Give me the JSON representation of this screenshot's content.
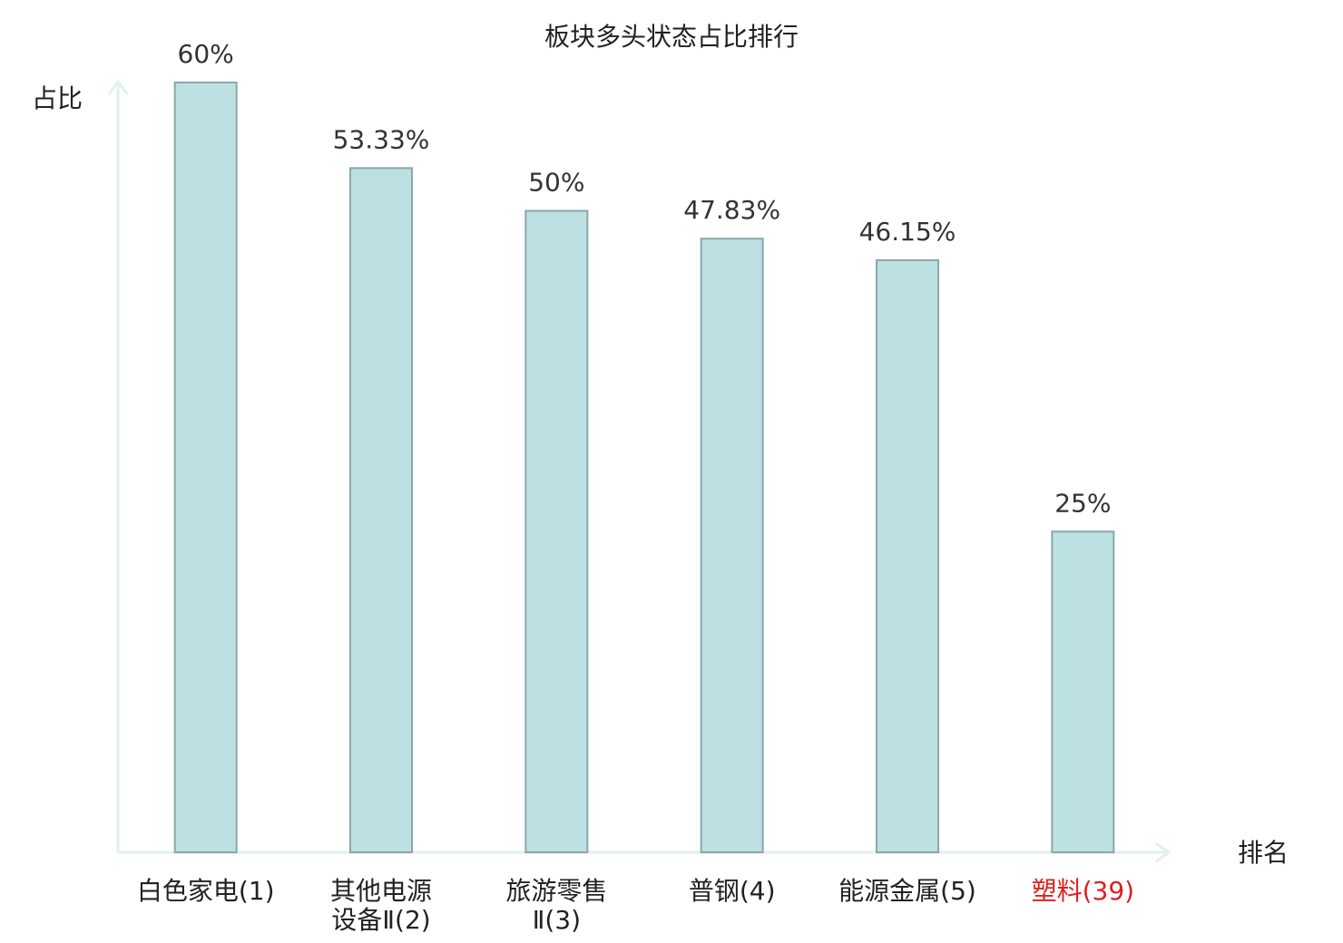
{
  "chart_data": {
    "type": "bar",
    "title": "板块多头状态占比排行",
    "y_label": "占比",
    "x_label": "排名",
    "categories": [
      [
        "白色家电(1)"
      ],
      [
        "其他电源",
        "设备Ⅱ(2)"
      ],
      [
        "旅游零售",
        "Ⅱ(3)"
      ],
      [
        "普钢(4)"
      ],
      [
        "能源金属(5)"
      ],
      [
        "塑料(39)"
      ]
    ],
    "values": [
      60,
      53.33,
      50,
      47.83,
      46.15,
      25
    ],
    "value_labels": [
      "60%",
      "53.33%",
      "50%",
      "47.83%",
      "46.15%",
      "25%"
    ],
    "color": "#bde0e3",
    "edge_color": "#8aa7aa",
    "highlight": {
      "index": 5,
      "color": "#e0201e"
    },
    "ylim": [
      0,
      60
    ]
  }
}
